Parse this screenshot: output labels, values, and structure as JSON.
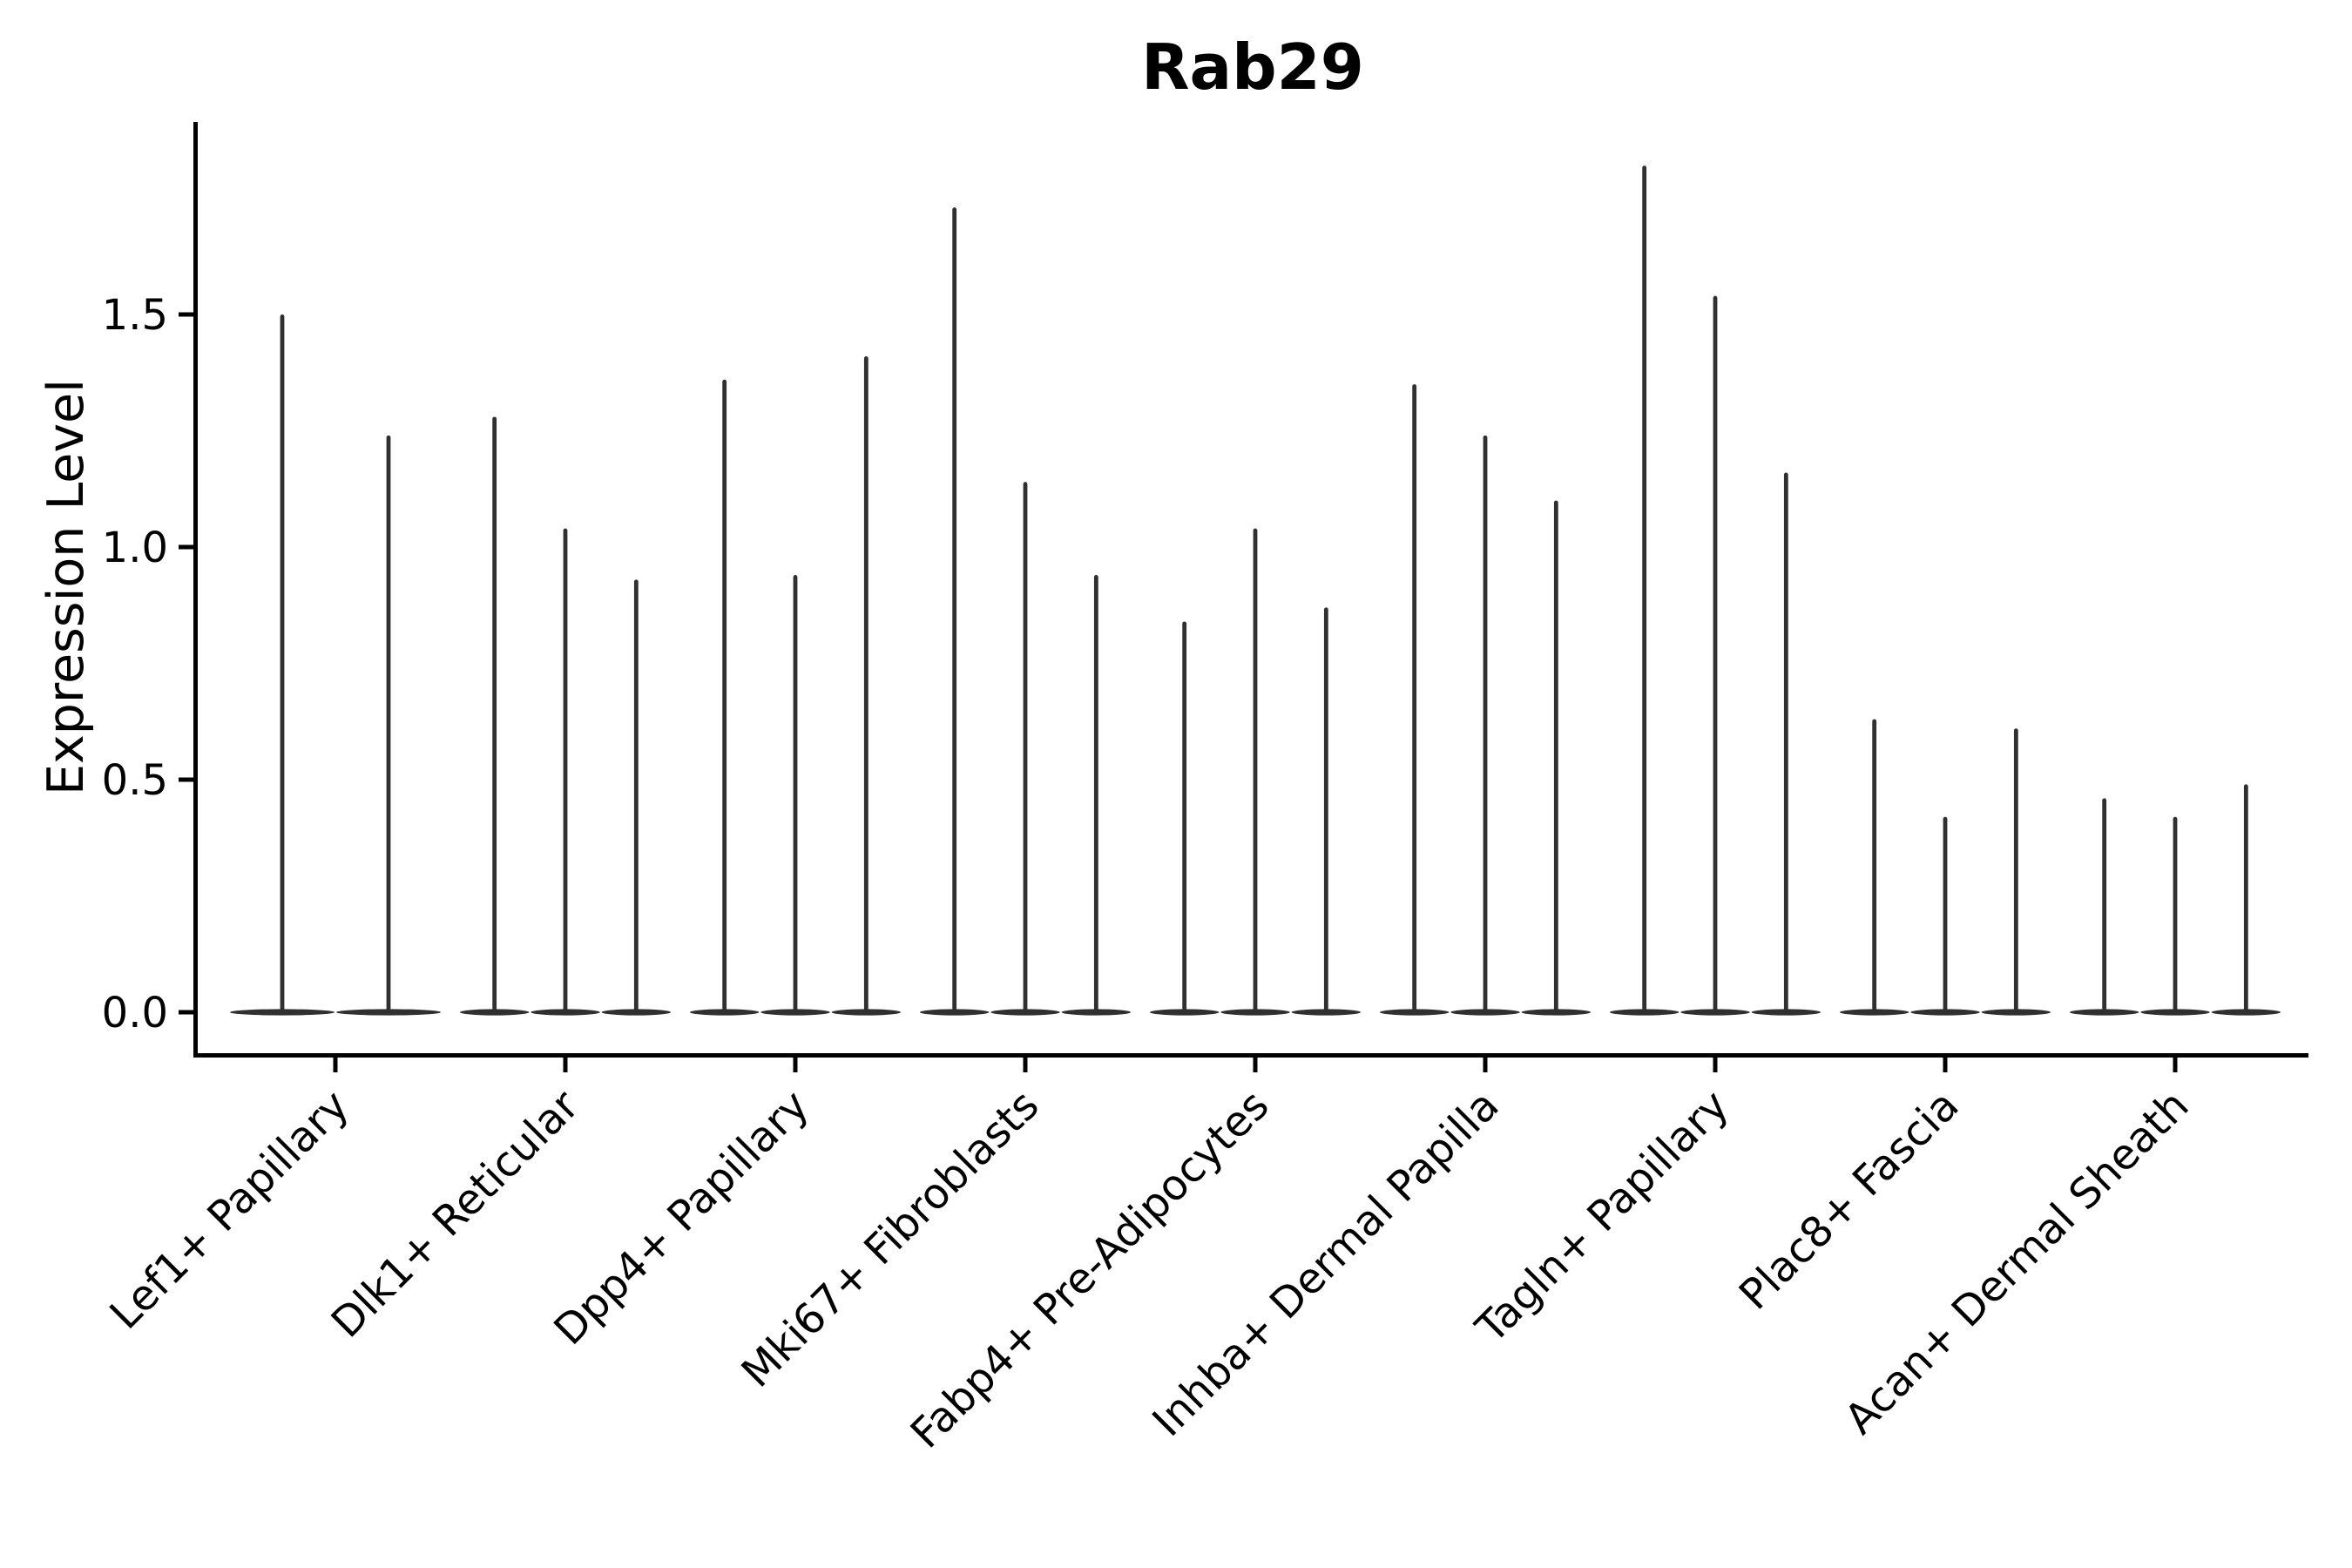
{
  "chart_data": {
    "type": "violin",
    "title": "Rab29",
    "ylabel": "Expression Level",
    "xlabel": "",
    "ylim": [
      -0.09,
      1.91
    ],
    "yticks": [
      0.0,
      0.5,
      1.0,
      1.5
    ],
    "ytick_labels": [
      "0.0",
      "0.5",
      "1.0",
      "1.5"
    ],
    "grid": false,
    "legend": false,
    "baseline_value": 0.0,
    "categories": [
      "Lef1+ Papillary",
      "Dlk1+ Reticular",
      "Dpp4+ Papillary",
      "Mki67+ Fibroblasts",
      "Fabp4+ Pre-Adipocytes",
      "Inhba+ Dermal Papilla",
      "Tagln+ Papillary",
      "Plac8+ Fascia",
      "Acan+ Dermal Sheath"
    ],
    "violins": [
      {
        "category": "Lef1+ Papillary",
        "peaks": [
          1.5,
          1.24
        ]
      },
      {
        "category": "Dlk1+ Reticular",
        "peaks": [
          1.28,
          1.04,
          0.93
        ]
      },
      {
        "category": "Dpp4+ Papillary",
        "peaks": [
          1.36,
          0.94,
          1.41
        ]
      },
      {
        "category": "Mki67+ Fibroblasts",
        "peaks": [
          1.73,
          1.14,
          0.94
        ]
      },
      {
        "category": "Fabp4+ Pre-Adipocytes",
        "peaks": [
          0.84,
          1.04,
          0.87
        ]
      },
      {
        "category": "Inhba+ Dermal Papilla",
        "peaks": [
          1.35,
          1.24,
          1.1
        ]
      },
      {
        "category": "Tagln+ Papillary",
        "peaks": [
          1.82,
          1.54,
          1.16
        ]
      },
      {
        "category": "Plac8+ Fascia",
        "peaks": [
          0.63,
          0.42,
          0.61
        ]
      },
      {
        "category": "Acan+ Dermal Sheath",
        "peaks": [
          0.46,
          0.42,
          0.49
        ]
      }
    ],
    "colors": {
      "violin": "#303030",
      "axis": "#000000",
      "background": "#ffffff"
    }
  }
}
